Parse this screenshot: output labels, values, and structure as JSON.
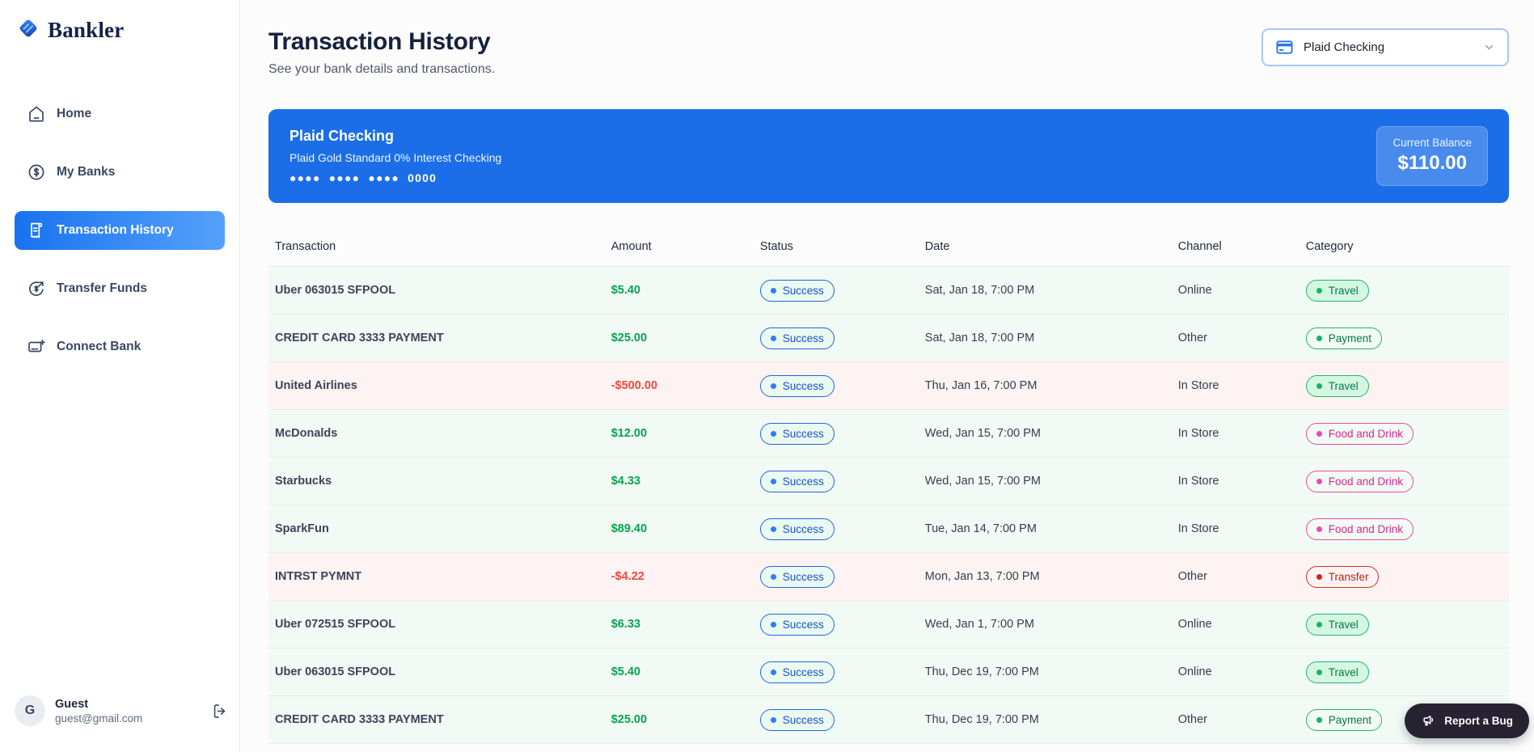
{
  "app": {
    "name": "Bankler"
  },
  "sidebar": {
    "items": [
      {
        "label": "Home",
        "icon": "home-icon",
        "active": false
      },
      {
        "label": "My Banks",
        "icon": "dollar-circle-icon",
        "active": false
      },
      {
        "label": "Transaction History",
        "icon": "receipt-icon",
        "active": true
      },
      {
        "label": "Transfer Funds",
        "icon": "transfer-icon",
        "active": false
      },
      {
        "label": "Connect Bank",
        "icon": "connect-bank-icon",
        "active": false
      }
    ],
    "user": {
      "initial": "G",
      "name": "Guest",
      "email": "guest@gmail.com"
    }
  },
  "header": {
    "title": "Transaction History",
    "subtitle": "See your bank details and transactions."
  },
  "account_select": {
    "value": "Plaid Checking",
    "icon": "credit-card-icon"
  },
  "bank_card": {
    "name": "Plaid Checking",
    "description": "Plaid Gold Standard 0% Interest Checking",
    "masked_number": "●●●● ●●●● ●●●● 0000",
    "balance_label": "Current Balance",
    "balance": "$110.00"
  },
  "table": {
    "columns": [
      "Transaction",
      "Amount",
      "Status",
      "Date",
      "Channel",
      "Category"
    ],
    "rows": [
      {
        "transaction": "Uber 063015 SFPOOL",
        "amount": "$5.40",
        "direction": "credit",
        "status": "Success",
        "date": "Sat, Jan 18, 7:00 PM",
        "channel": "Online",
        "category": "Travel",
        "category_style": "travel"
      },
      {
        "transaction": "CREDIT CARD 3333 PAYMENT",
        "amount": "$25.00",
        "direction": "credit",
        "status": "Success",
        "date": "Sat, Jan 18, 7:00 PM",
        "channel": "Other",
        "category": "Payment",
        "category_style": "payment"
      },
      {
        "transaction": "United Airlines",
        "amount": "-$500.00",
        "direction": "debit",
        "status": "Success",
        "date": "Thu, Jan 16, 7:00 PM",
        "channel": "In Store",
        "category": "Travel",
        "category_style": "travel"
      },
      {
        "transaction": "McDonalds",
        "amount": "$12.00",
        "direction": "credit",
        "status": "Success",
        "date": "Wed, Jan 15, 7:00 PM",
        "channel": "In Store",
        "category": "Food and Drink",
        "category_style": "food"
      },
      {
        "transaction": "Starbucks",
        "amount": "$4.33",
        "direction": "credit",
        "status": "Success",
        "date": "Wed, Jan 15, 7:00 PM",
        "channel": "In Store",
        "category": "Food and Drink",
        "category_style": "food"
      },
      {
        "transaction": "SparkFun",
        "amount": "$89.40",
        "direction": "credit",
        "status": "Success",
        "date": "Tue, Jan 14, 7:00 PM",
        "channel": "In Store",
        "category": "Food and Drink",
        "category_style": "food"
      },
      {
        "transaction": "INTRST PYMNT",
        "amount": "-$4.22",
        "direction": "debit",
        "status": "Success",
        "date": "Mon, Jan 13, 7:00 PM",
        "channel": "Other",
        "category": "Transfer",
        "category_style": "transfer"
      },
      {
        "transaction": "Uber 072515 SFPOOL",
        "amount": "$6.33",
        "direction": "credit",
        "status": "Success",
        "date": "Wed, Jan 1, 7:00 PM",
        "channel": "Online",
        "category": "Travel",
        "category_style": "travel"
      },
      {
        "transaction": "Uber 063015 SFPOOL",
        "amount": "$5.40",
        "direction": "credit",
        "status": "Success",
        "date": "Thu, Dec 19, 7:00 PM",
        "channel": "Online",
        "category": "Travel",
        "category_style": "travel"
      },
      {
        "transaction": "CREDIT CARD 3333 PAYMENT",
        "amount": "$25.00",
        "direction": "credit",
        "status": "Success",
        "date": "Thu, Dec 19, 7:00 PM",
        "channel": "Other",
        "category": "Payment",
        "category_style": "payment"
      }
    ]
  },
  "report_bug": {
    "label": "Report a Bug"
  },
  "colors": {
    "brand_blue": "#1b6ee8",
    "active_nav_gradient": [
      "#1872f0",
      "#55a1fb"
    ],
    "positive_green": "#0aa24f",
    "negative_red": "#f4473c",
    "success_badge_blue": "#1750d6",
    "travel_badge_green": "#027a48",
    "food_badge_pink": "#dd2590",
    "transfer_badge_red": "#b42318",
    "positive_row_bg": "#f1faf4",
    "negative_row_bg": "#fdf3f2"
  }
}
